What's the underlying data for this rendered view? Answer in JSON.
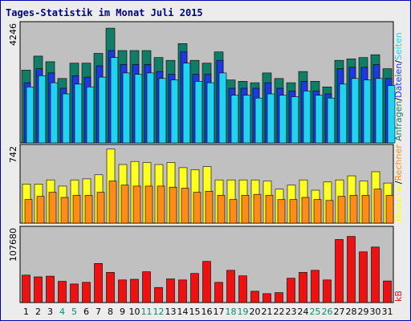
{
  "title": "Tages-Statistik im Monat Juli 2015",
  "colors": {
    "border": "#0000aa",
    "plot_bg": "#c0c0c0",
    "frame": "#ececec",
    "anfragen": "#117d66",
    "dateien": "#1f39e0",
    "seiten": "#22d2f2",
    "besuche": "#ffff22",
    "rechner": "#ff8c16",
    "kb": "#ee1111",
    "weekday": "#000000",
    "weekend": "#118866",
    "sep": "#000000"
  },
  "legend": {
    "anfragen": "Anfragen",
    "dateien": "Dateien",
    "seiten": "Seiten",
    "besuche": "Besuche",
    "rechner": "Rechner",
    "kb": "kB",
    "sep": "/"
  },
  "chart_data": [
    {
      "type": "bar",
      "name": "requests-panel",
      "ymax_label": "4246",
      "ylim": [
        0,
        4246
      ],
      "categories": [
        "1",
        "2",
        "3",
        "4",
        "5",
        "6",
        "7",
        "8",
        "9",
        "10",
        "11",
        "12",
        "13",
        "14",
        "15",
        "16",
        "17",
        "18",
        "19",
        "20",
        "21",
        "22",
        "23",
        "24",
        "25",
        "26",
        "27",
        "28",
        "29",
        "30",
        "31"
      ],
      "weekend": [
        4,
        5,
        11,
        12,
        18,
        19,
        25,
        26
      ],
      "series": [
        {
          "name": "Anfragen",
          "values": [
            2600,
            3100,
            2900,
            2300,
            2850,
            2850,
            3200,
            4100,
            3300,
            3300,
            3300,
            3050,
            2950,
            3550,
            2950,
            2850,
            3250,
            2250,
            2200,
            2150,
            2500,
            2300,
            2150,
            2550,
            2200,
            2000,
            2950,
            3000,
            3050,
            3150,
            2650
          ]
        },
        {
          "name": "Dateien",
          "values": [
            2150,
            2650,
            2500,
            1950,
            2400,
            2350,
            2750,
            3300,
            2800,
            2800,
            2800,
            2550,
            2450,
            3250,
            2450,
            2450,
            2950,
            1950,
            1950,
            1950,
            2150,
            1950,
            1850,
            2200,
            1850,
            1750,
            2650,
            2700,
            2700,
            2800,
            2300
          ]
        },
        {
          "name": "Seiten",
          "values": [
            2000,
            2400,
            2150,
            1750,
            2100,
            2000,
            2350,
            3050,
            2500,
            2450,
            2500,
            2300,
            2250,
            2850,
            2200,
            2150,
            2500,
            1700,
            1700,
            1600,
            1750,
            1700,
            1650,
            1850,
            1700,
            1600,
            2100,
            2300,
            2250,
            2300,
            2050
          ]
        }
      ]
    },
    {
      "type": "bar",
      "name": "visits-panel",
      "ymax_label": "742",
      "ylim": [
        0,
        742
      ],
      "categories": [
        "1",
        "2",
        "3",
        "4",
        "5",
        "6",
        "7",
        "8",
        "9",
        "10",
        "11",
        "12",
        "13",
        "14",
        "15",
        "16",
        "17",
        "18",
        "19",
        "20",
        "21",
        "22",
        "23",
        "24",
        "25",
        "26",
        "27",
        "28",
        "29",
        "30",
        "31"
      ],
      "series": [
        {
          "name": "Besuche",
          "values": [
            380,
            380,
            420,
            360,
            420,
            430,
            470,
            720,
            570,
            600,
            590,
            570,
            590,
            540,
            520,
            550,
            420,
            420,
            420,
            420,
            410,
            330,
            370,
            420,
            320,
            400,
            420,
            460,
            410,
            500,
            390
          ]
        },
        {
          "name": "Rechner",
          "values": [
            230,
            260,
            300,
            250,
            270,
            270,
            300,
            410,
            370,
            360,
            360,
            360,
            350,
            340,
            300,
            310,
            270,
            230,
            270,
            280,
            270,
            230,
            230,
            250,
            230,
            220,
            260,
            270,
            270,
            330,
            270
          ]
        }
      ]
    },
    {
      "type": "bar",
      "name": "kb-panel",
      "ymax_label": "107680",
      "ylim": [
        0,
        107680
      ],
      "categories": [
        "1",
        "2",
        "3",
        "4",
        "5",
        "6",
        "7",
        "8",
        "9",
        "10",
        "11",
        "12",
        "13",
        "14",
        "15",
        "16",
        "17",
        "18",
        "19",
        "20",
        "21",
        "22",
        "23",
        "24",
        "25",
        "26",
        "27",
        "28",
        "29",
        "30",
        "31"
      ],
      "series": [
        {
          "name": "kB",
          "values": [
            40000,
            37500,
            38500,
            31000,
            27000,
            29500,
            57000,
            44000,
            33000,
            34000,
            45000,
            22000,
            34500,
            33000,
            42500,
            60000,
            29500,
            47000,
            39000,
            16500,
            13000,
            14500,
            35500,
            44000,
            47000,
            33000,
            92000,
            96500,
            74000,
            81000,
            31500
          ]
        }
      ]
    }
  ]
}
